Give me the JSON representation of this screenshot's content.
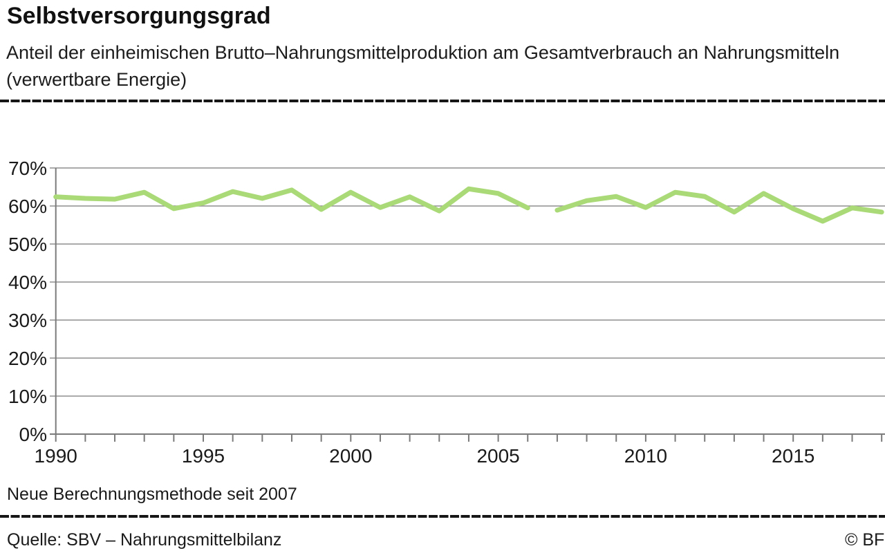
{
  "header": {
    "title": "Selbstversorgungsgrad",
    "subtitle_line1": "Anteil der einheimischen Brutto–Nahrungsmittelproduktion am Gesamtverbrauch an Nahrungsmitteln",
    "subtitle_line2": "(verwertbare Energie)"
  },
  "footer": {
    "footnote": "Neue Berechnungsmethode seit 2007",
    "source": "Quelle: SBV – Nahrungsmittelbilanz",
    "copyright": "© BFS"
  },
  "colors": {
    "line": "#aad978",
    "grid": "#8d8d8d",
    "axis": "#7a7a7a",
    "text": "#1a1a1a"
  },
  "chart_data": {
    "type": "line",
    "title": "Selbstversorgungsgrad",
    "xlabel": "",
    "ylabel": "",
    "ylim": [
      0,
      70
    ],
    "xlim": [
      1990,
      2018
    ],
    "grid": true,
    "legend_position": "none",
    "y_ticks": [
      0,
      10,
      20,
      30,
      40,
      50,
      60,
      70
    ],
    "y_tick_suffix": "%",
    "x_tick_labels": [
      1990,
      1995,
      2000,
      2005,
      2010,
      2015
    ],
    "annotation": "Neue Berechnungsmethode seit 2007",
    "series": [
      {
        "name": "Selbstversorgungsgrad 1990–2006",
        "x": [
          1990,
          1991,
          1992,
          1993,
          1994,
          1995,
          1996,
          1997,
          1998,
          1999,
          2000,
          2001,
          2002,
          2003,
          2004,
          2005,
          2006
        ],
        "values": [
          62.4,
          62.0,
          61.8,
          63.6,
          59.3,
          60.8,
          63.8,
          62.0,
          64.2,
          59.1,
          63.6,
          59.6,
          62.4,
          58.7,
          64.5,
          63.3,
          59.5
        ]
      },
      {
        "name": "Selbstversorgungsgrad 2007–2018 (neue Berechnungsmethode)",
        "x": [
          2007,
          2008,
          2009,
          2010,
          2011,
          2012,
          2013,
          2014,
          2015,
          2016,
          2017,
          2018
        ],
        "values": [
          58.9,
          61.4,
          62.5,
          59.6,
          63.6,
          62.5,
          58.4,
          63.3,
          59.3,
          56.0,
          59.5,
          58.4
        ]
      }
    ]
  }
}
